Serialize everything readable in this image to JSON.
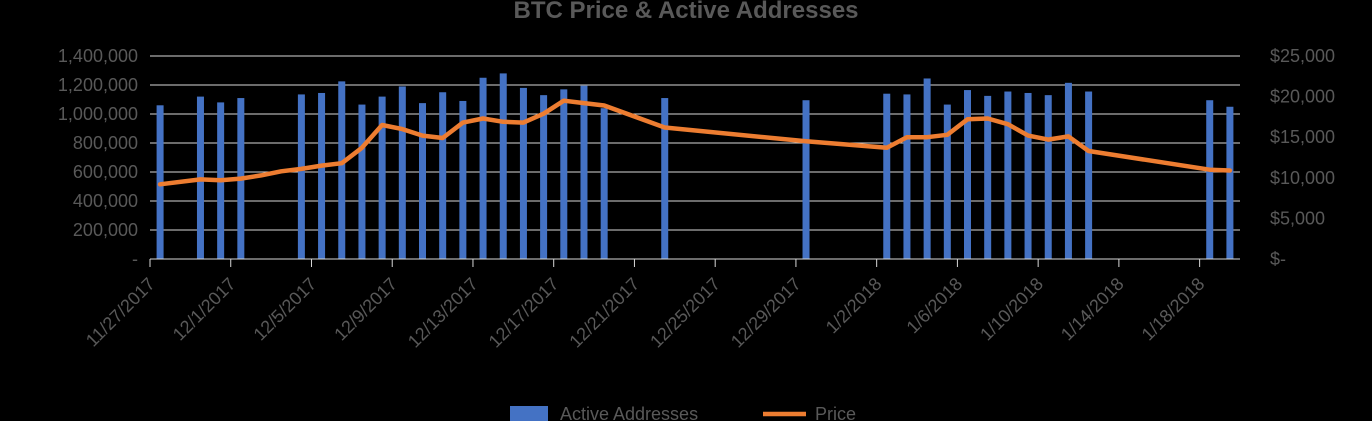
{
  "chart_data": {
    "type": "bar+line",
    "title": "BTC Price & Active Addresses",
    "xlabel": "",
    "ylabel": "",
    "y2label": "",
    "x_ticks": [
      "11/27/2017",
      "12/1/2017",
      "12/5/2017",
      "12/9/2017",
      "12/13/2017",
      "12/17/2017",
      "12/21/2017",
      "12/25/2017",
      "12/29/2017",
      "1/2/2018",
      "1/6/2018",
      "1/10/2018",
      "1/14/2018",
      "1/18/2018"
    ],
    "x_range": [
      "11/27/2017",
      "1/19/2018"
    ],
    "y_left": {
      "ticks": [
        0,
        200000,
        400000,
        600000,
        800000,
        1000000,
        1200000,
        1400000
      ],
      "tick_labels": [
        "-",
        "200,000",
        "400,000",
        "600,000",
        "800,000",
        "1,000,000",
        "1,200,000",
        "1,400,000"
      ],
      "range": [
        0,
        1400000
      ]
    },
    "y_right": {
      "ticks": [
        0,
        5000,
        10000,
        15000,
        20000,
        25000
      ],
      "tick_labels": [
        "$-",
        "$5,000",
        "$10,000",
        "$15,000",
        "$20,000",
        "$25,000"
      ],
      "range": [
        0,
        25000
      ]
    },
    "grid": true,
    "legend_position": "bottom",
    "series": [
      {
        "name": "Active Addresses",
        "kind": "bar",
        "axis": "left",
        "color": "#4472c4",
        "points": [
          {
            "x": "11/27/2017",
            "y": 1060000
          },
          {
            "x": "11/29/2017",
            "y": 1120000
          },
          {
            "x": "11/30/2017",
            "y": 1080000
          },
          {
            "x": "12/1/2017",
            "y": 1110000
          },
          {
            "x": "12/4/2017",
            "y": 1135000
          },
          {
            "x": "12/5/2017",
            "y": 1145000
          },
          {
            "x": "12/6/2017",
            "y": 1225000
          },
          {
            "x": "12/7/2017",
            "y": 1065000
          },
          {
            "x": "12/8/2017",
            "y": 1120000
          },
          {
            "x": "12/9/2017",
            "y": 1190000
          },
          {
            "x": "12/10/2017",
            "y": 1075000
          },
          {
            "x": "12/11/2017",
            "y": 1150000
          },
          {
            "x": "12/12/2017",
            "y": 1090000
          },
          {
            "x": "12/13/2017",
            "y": 1250000
          },
          {
            "x": "12/14/2017",
            "y": 1280000
          },
          {
            "x": "12/15/2017",
            "y": 1180000
          },
          {
            "x": "12/16/2017",
            "y": 1130000
          },
          {
            "x": "12/17/2017",
            "y": 1170000
          },
          {
            "x": "12/18/2017",
            "y": 1195000
          },
          {
            "x": "12/19/2017",
            "y": 1040000
          },
          {
            "x": "12/22/2017",
            "y": 1110000
          },
          {
            "x": "12/29/2017",
            "y": 1095000
          },
          {
            "x": "1/2/2018",
            "y": 1140000
          },
          {
            "x": "1/3/2018",
            "y": 1135000
          },
          {
            "x": "1/4/2018",
            "y": 1245000
          },
          {
            "x": "1/5/2018",
            "y": 1065000
          },
          {
            "x": "1/6/2018",
            "y": 1165000
          },
          {
            "x": "1/7/2018",
            "y": 1125000
          },
          {
            "x": "1/8/2018",
            "y": 1155000
          },
          {
            "x": "1/9/2018",
            "y": 1145000
          },
          {
            "x": "1/10/2018",
            "y": 1130000
          },
          {
            "x": "1/11/2018",
            "y": 1215000
          },
          {
            "x": "1/12/2018",
            "y": 1155000
          },
          {
            "x": "1/18/2018",
            "y": 1095000
          },
          {
            "x": "1/19/2018",
            "y": 1050000
          }
        ]
      },
      {
        "name": "Price",
        "kind": "line",
        "axis": "right",
        "color": "#ed7d31",
        "points": [
          {
            "x": "11/27/2017",
            "y": 9200
          },
          {
            "x": "11/29/2017",
            "y": 9800
          },
          {
            "x": "11/30/2017",
            "y": 9700
          },
          {
            "x": "12/1/2017",
            "y": 9900
          },
          {
            "x": "12/2/2017",
            "y": 10300
          },
          {
            "x": "12/3/2017",
            "y": 10800
          },
          {
            "x": "12/4/2017",
            "y": 11100
          },
          {
            "x": "12/5/2017",
            "y": 11500
          },
          {
            "x": "12/6/2017",
            "y": 11800
          },
          {
            "x": "12/7/2017",
            "y": 13700
          },
          {
            "x": "12/8/2017",
            "y": 16500
          },
          {
            "x": "12/9/2017",
            "y": 16000
          },
          {
            "x": "12/10/2017",
            "y": 15200
          },
          {
            "x": "12/11/2017",
            "y": 14900
          },
          {
            "x": "12/12/2017",
            "y": 16800
          },
          {
            "x": "12/13/2017",
            "y": 17300
          },
          {
            "x": "12/14/2017",
            "y": 16900
          },
          {
            "x": "12/15/2017",
            "y": 16800
          },
          {
            "x": "12/16/2017",
            "y": 17900
          },
          {
            "x": "12/17/2017",
            "y": 19500
          },
          {
            "x": "12/18/2017",
            "y": 19200
          },
          {
            "x": "12/19/2017",
            "y": 18900
          },
          {
            "x": "12/22/2017",
            "y": 16200
          },
          {
            "x": "12/29/2017",
            "y": 14500
          },
          {
            "x": "1/2/2018",
            "y": 13700
          },
          {
            "x": "1/3/2018",
            "y": 15000
          },
          {
            "x": "1/4/2018",
            "y": 15000
          },
          {
            "x": "1/5/2018",
            "y": 15300
          },
          {
            "x": "1/6/2018",
            "y": 17200
          },
          {
            "x": "1/7/2018",
            "y": 17300
          },
          {
            "x": "1/8/2018",
            "y": 16600
          },
          {
            "x": "1/9/2018",
            "y": 15200
          },
          {
            "x": "1/10/2018",
            "y": 14700
          },
          {
            "x": "1/11/2018",
            "y": 15100
          },
          {
            "x": "1/12/2018",
            "y": 13300
          },
          {
            "x": "1/18/2018",
            "y": 11000
          },
          {
            "x": "1/19/2018",
            "y": 10900
          }
        ]
      }
    ]
  }
}
